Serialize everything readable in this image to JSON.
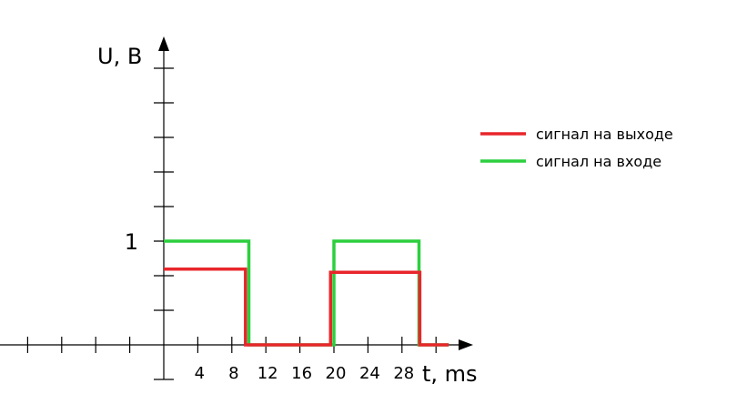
{
  "chart_data": {
    "type": "line",
    "xlabel": "t, ms",
    "ylabel": "U, B",
    "x_ticks": [
      4,
      8,
      12,
      16,
      20,
      24,
      28
    ],
    "y_tick_labels": [
      {
        "value": 1,
        "label": "1"
      }
    ],
    "grid": false,
    "legend_position": "right",
    "series": [
      {
        "name": "сигнал на выходе",
        "color": "#e8262b",
        "points": [
          [
            0,
            0.73
          ],
          [
            9.6,
            0.73
          ],
          [
            9.6,
            0
          ],
          [
            19.6,
            0
          ],
          [
            19.6,
            0.7
          ],
          [
            30.1,
            0.7
          ],
          [
            30.1,
            0
          ],
          [
            33.5,
            0
          ]
        ]
      },
      {
        "name": "сигнал на входе",
        "color": "#2ccf3e",
        "points": [
          [
            0,
            1
          ],
          [
            10,
            1
          ],
          [
            10,
            0
          ],
          [
            20,
            0
          ],
          [
            20,
            1
          ],
          [
            30,
            1
          ],
          [
            30,
            0
          ],
          [
            33.5,
            0
          ]
        ]
      }
    ]
  }
}
